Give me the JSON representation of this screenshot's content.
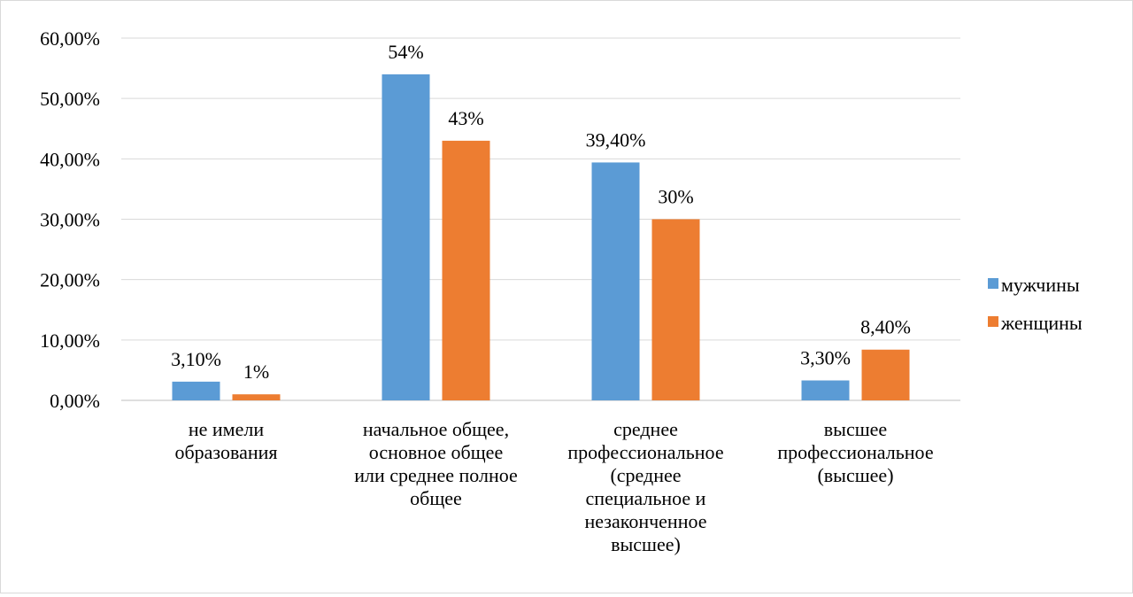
{
  "chart_data": {
    "type": "bar",
    "title": "",
    "xlabel": "",
    "ylabel": "",
    "ylim": [
      0,
      0.6
    ],
    "y_ticks": [
      "0,00%",
      "10,00%",
      "20,00%",
      "30,00%",
      "40,00%",
      "50,00%",
      "60,00%"
    ],
    "grid": true,
    "legend_position": "right",
    "categories": [
      "не имели образования",
      "начальное общее, основное общее или среднее полное общее",
      "среднее профессиональное (среднее специальное и незаконченное высшее)",
      "высшее профессиональное (высшее)"
    ],
    "category_lines": [
      [
        "не имели",
        "образования"
      ],
      [
        "начальное общее,",
        "основное общее",
        "или среднее полное",
        "общее"
      ],
      [
        "среднее",
        "профессиональное",
        "(среднее",
        "специальное и",
        "незаконченное",
        "высшее)"
      ],
      [
        "высшее",
        "профессиональное",
        "(высшее)"
      ]
    ],
    "series": [
      {
        "name": "мужчины",
        "color": "#5b9bd5",
        "values": [
          0.031,
          0.54,
          0.394,
          0.033
        ],
        "labels": [
          "3,10%",
          "54%",
          "39,40%",
          "3,30%"
        ]
      },
      {
        "name": "женщины",
        "color": "#ed7d31",
        "values": [
          0.01,
          0.43,
          0.3,
          0.084
        ],
        "labels": [
          "1%",
          "43%",
          "30%",
          "8,40%"
        ]
      }
    ]
  }
}
